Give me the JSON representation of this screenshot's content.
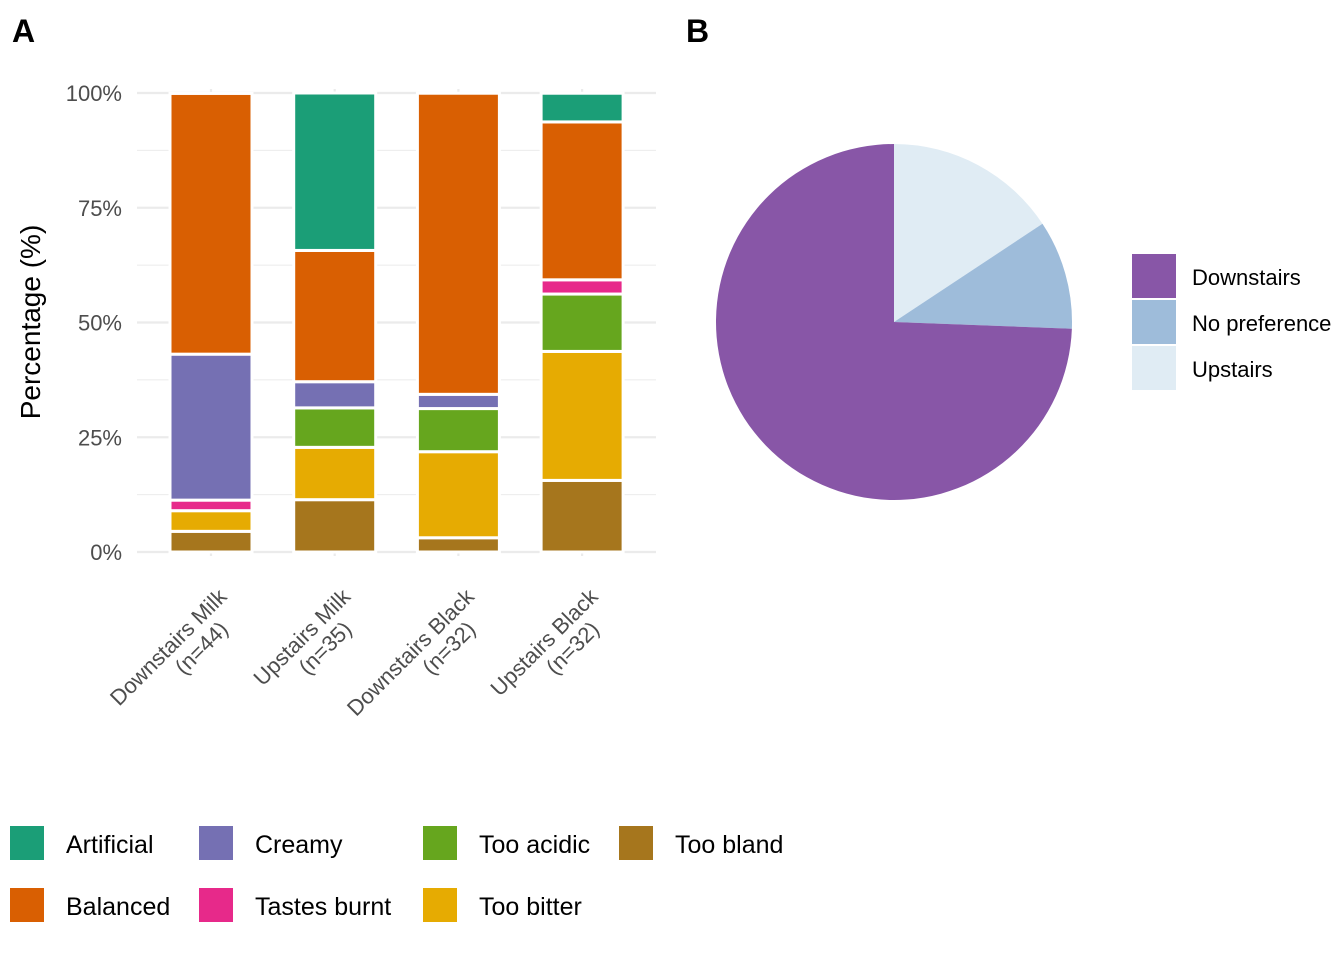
{
  "panels": {
    "a_tag": "A",
    "b_tag": "B"
  },
  "chart_data": [
    {
      "type": "bar",
      "stacked": true,
      "normalized": true,
      "ylabel": "Percentage (%)",
      "xlabel": "",
      "ylim": [
        0,
        100
      ],
      "yticks": [
        "0%",
        "25%",
        "50%",
        "75%",
        "100%"
      ],
      "grid": true,
      "categories": [
        {
          "line1": "Downstairs Milk",
          "line2": "(n=44)"
        },
        {
          "line1": "Upstairs Milk",
          "line2": "(n=35)"
        },
        {
          "line1": "Downstairs Black",
          "line2": "(n=32)"
        },
        {
          "line1": "Upstairs Black",
          "line2": "(n=32)"
        }
      ],
      "legend_position": "bottom",
      "series": [
        {
          "name": "Artificial",
          "color": "#1B9E77",
          "values": [
            0,
            34.3,
            0,
            6.25
          ]
        },
        {
          "name": "Balanced",
          "color": "#D95F02",
          "values": [
            56.8,
            28.6,
            65.6,
            34.4
          ]
        },
        {
          "name": "Creamy",
          "color": "#7570B3",
          "values": [
            31.8,
            5.7,
            3.1,
            0
          ]
        },
        {
          "name": "Tastes burnt",
          "color": "#E7298A",
          "values": [
            2.3,
            0,
            0,
            3.1
          ]
        },
        {
          "name": "Too acidic",
          "color": "#66A61E",
          "values": [
            0,
            8.6,
            9.4,
            12.5
          ]
        },
        {
          "name": "Too bitter",
          "color": "#E6AB02",
          "values": [
            4.5,
            11.4,
            18.75,
            28.1
          ]
        },
        {
          "name": "Too bland",
          "color": "#A6761D",
          "values": [
            4.5,
            11.4,
            3.1,
            15.6
          ]
        }
      ]
    },
    {
      "type": "pie",
      "legend_position": "right",
      "slices": [
        {
          "name": "Downstairs",
          "color": "#8856A7",
          "value": 74.4
        },
        {
          "name": "No preference",
          "color": "#9EBCDA",
          "value": 9.9
        },
        {
          "name": "Upstairs",
          "color": "#E0ECF4",
          "value": 15.7
        }
      ]
    }
  ]
}
